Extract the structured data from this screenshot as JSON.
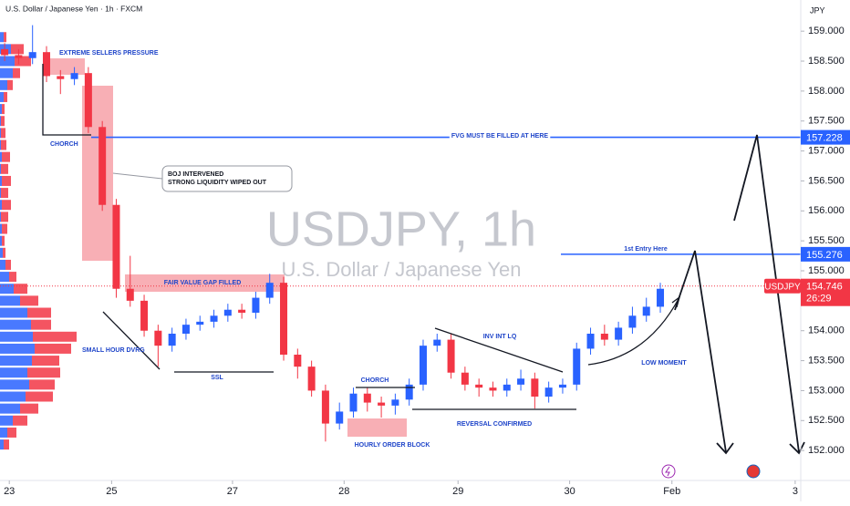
{
  "header": "U.S. Dollar / Japanese Yen · 1h · FXCM",
  "chart_data": {
    "type": "candlestick",
    "currency": "JPY",
    "watermark_title": "USDJPY, 1h",
    "watermark_subtitle": "U.S. Dollar / Japanese Yen",
    "up_color": "#2962ff",
    "down_color": "#f23645",
    "x": [
      1,
      4,
      7,
      10,
      13,
      16,
      19,
      22,
      25,
      28,
      31,
      34,
      37,
      40,
      43,
      46,
      49,
      52,
      55,
      58,
      61,
      64,
      67,
      70,
      73,
      76,
      79,
      82,
      85,
      88,
      91,
      94,
      97,
      100,
      103,
      106,
      109,
      112,
      115,
      118,
      121,
      124,
      127,
      130,
      133,
      136,
      139,
      142
    ],
    "open": [
      158.7,
      158.6,
      158.55,
      158.65,
      158.25,
      158.2,
      158.3,
      157.4,
      156.1,
      154.7,
      154.5,
      154.0,
      153.75,
      153.95,
      154.1,
      154.15,
      154.25,
      154.35,
      154.3,
      154.55,
      154.8,
      153.6,
      153.4,
      153.0,
      152.45,
      152.65,
      152.95,
      152.8,
      152.75,
      152.85,
      153.1,
      153.75,
      153.85,
      153.3,
      153.1,
      153.05,
      153.0,
      153.1,
      153.2,
      152.9,
      153.05,
      153.1,
      153.7,
      153.95,
      153.85,
      154.05,
      154.25,
      154.4
    ],
    "high": [
      158.8,
      158.7,
      159.1,
      158.75,
      158.35,
      158.4,
      158.4,
      157.5,
      156.2,
      155.25,
      154.6,
      154.1,
      154.05,
      154.2,
      154.25,
      154.35,
      154.45,
      154.45,
      154.65,
      154.95,
      154.9,
      153.7,
      153.5,
      153.1,
      152.8,
      153.05,
      153.05,
      152.9,
      152.95,
      153.2,
      153.85,
      153.95,
      153.95,
      153.4,
      153.2,
      153.15,
      153.2,
      153.35,
      153.3,
      153.15,
      153.2,
      153.8,
      154.05,
      154.1,
      154.15,
      154.4,
      154.55,
      154.8
    ],
    "low": [
      158.5,
      158.45,
      158.45,
      158.15,
      157.95,
      158.1,
      157.3,
      156.0,
      154.55,
      154.4,
      153.9,
      153.4,
      153.65,
      153.85,
      154.0,
      154.05,
      154.15,
      154.2,
      154.2,
      154.45,
      153.5,
      153.2,
      152.9,
      152.15,
      152.35,
      152.55,
      152.65,
      152.55,
      152.6,
      152.75,
      153.0,
      153.65,
      153.2,
      153.0,
      152.9,
      152.9,
      152.9,
      153.0,
      152.7,
      152.8,
      152.95,
      153.0,
      153.6,
      153.75,
      153.75,
      153.95,
      154.15,
      154.3
    ],
    "close": [
      158.6,
      158.55,
      158.65,
      158.25,
      158.2,
      158.3,
      157.4,
      156.1,
      154.7,
      154.5,
      154.0,
      153.75,
      153.95,
      154.1,
      154.15,
      154.25,
      154.35,
      154.3,
      154.55,
      154.8,
      153.6,
      153.4,
      153.0,
      152.45,
      152.65,
      152.95,
      152.8,
      152.75,
      152.85,
      153.1,
      153.75,
      153.85,
      153.3,
      153.1,
      153.05,
      153.0,
      153.1,
      153.2,
      152.9,
      153.05,
      153.1,
      153.7,
      153.95,
      153.85,
      154.05,
      154.25,
      154.4,
      154.7
    ],
    "xlim": [
      0,
      172.2
    ],
    "xticks": [
      {
        "value": 2,
        "label": "23"
      },
      {
        "value": 24,
        "label": "25"
      },
      {
        "value": 50,
        "label": "27"
      },
      {
        "value": 74,
        "label": "28"
      },
      {
        "value": 98.5,
        "label": "29"
      },
      {
        "value": 122.5,
        "label": "30"
      },
      {
        "value": 144.5,
        "label": "Feb"
      },
      {
        "value": 171,
        "label": "3"
      }
    ],
    "ylim": [
      151.5,
      159.52
    ],
    "yticks": [
      {
        "value": 152,
        "label": "152.000"
      },
      {
        "value": 152.5,
        "label": "152.500"
      },
      {
        "value": 153,
        "label": "153.000"
      },
      {
        "value": 153.5,
        "label": "153.500"
      },
      {
        "value": 154,
        "label": "154.000"
      },
      {
        "value": 154.5,
        "label": "154.500"
      },
      {
        "value": 155,
        "label": "155.000"
      },
      {
        "value": 155.5,
        "label": "155.500"
      },
      {
        "value": 156,
        "label": "156.000"
      },
      {
        "value": 156.5,
        "label": "156.500"
      },
      {
        "value": 157,
        "label": "157.000"
      },
      {
        "value": 157.5,
        "label": "157.500"
      },
      {
        "value": 158,
        "label": "158.000"
      },
      {
        "value": 158.5,
        "label": "158.500"
      },
      {
        "value": 159,
        "label": "159.000"
      }
    ],
    "volume_profile": {
      "prices": [
        152.1,
        152.3,
        152.5,
        152.7,
        152.9,
        153.1,
        153.3,
        153.5,
        153.7,
        153.9,
        154.1,
        154.3,
        154.5,
        154.7,
        154.9,
        155.1,
        155.3,
        155.5,
        155.7,
        155.9,
        156.1,
        156.3,
        156.5,
        156.7,
        156.9,
        157.1,
        157.3,
        157.5,
        157.7,
        157.9,
        158.1,
        158.3,
        158.5,
        158.7,
        158.9
      ],
      "buy": [
        4,
        8,
        14,
        22,
        28,
        32,
        30,
        35,
        38,
        36,
        34,
        30,
        22,
        15,
        10,
        6,
        3,
        2,
        2,
        1,
        2,
        1,
        2,
        1,
        2,
        1,
        1,
        1,
        2,
        4,
        8,
        14,
        16,
        12,
        4
      ],
      "sell": [
        6,
        10,
        16,
        20,
        30,
        28,
        36,
        30,
        40,
        48,
        22,
        26,
        20,
        15,
        8,
        6,
        3,
        3,
        6,
        8,
        10,
        8,
        10,
        8,
        9,
        6,
        5,
        4,
        3,
        4,
        6,
        8,
        18,
        14,
        3
      ]
    },
    "levels": [
      {
        "value": 157.228,
        "color": "#2962ff"
      },
      {
        "value": 155.276,
        "color": "#2962ff"
      }
    ],
    "last_price": {
      "symbol": "USDJPY",
      "value": 154.746,
      "countdown": "26:29",
      "color": "#f23645"
    },
    "annotations": [
      "EXTREME SELLERS PRESSURE",
      "CHORCH",
      "FVG MUST BE FILLED AT HERE",
      "BOJ INTERVENED",
      "STRONG LIQUIDITY WIPED OUT",
      "1st Entry Here",
      "FAIR VALUE GAP FILLED",
      "SMALL HOUR  DVRG",
      "SSL",
      "INV INT LQ",
      "CHORCH",
      "LOW MOMENT",
      "REVERSAL CONFIRMED",
      "HOURLY ORDER BLOCK"
    ]
  }
}
